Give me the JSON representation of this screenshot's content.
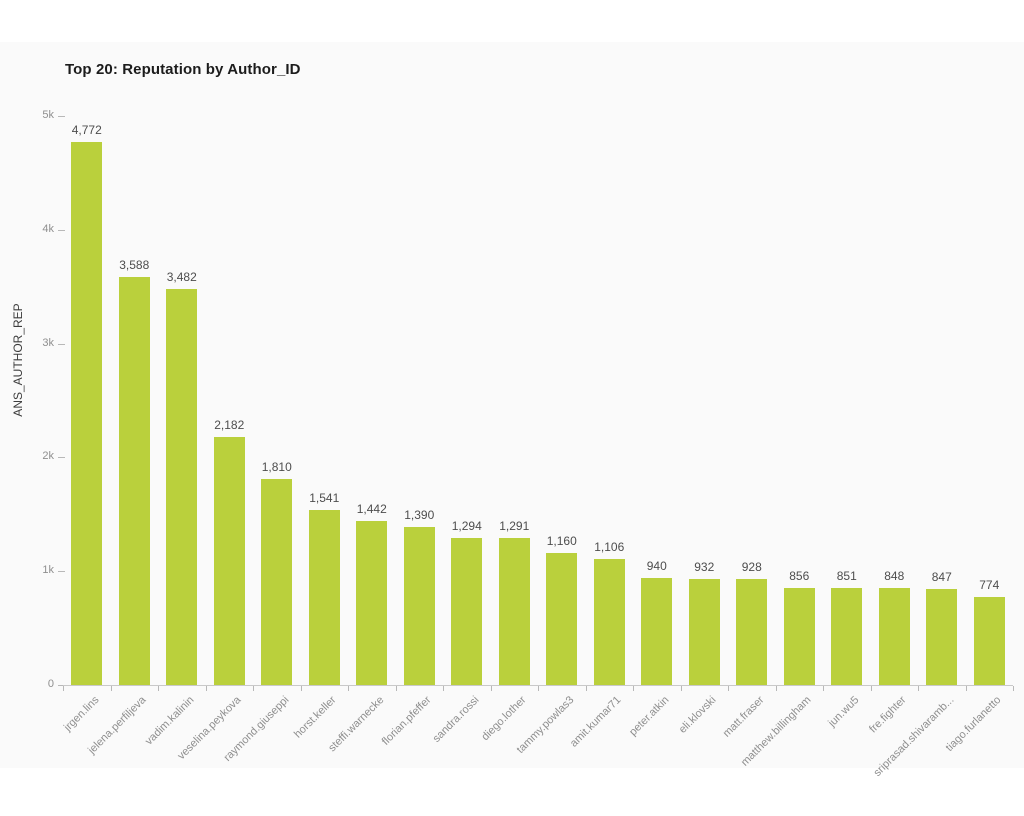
{
  "page": {
    "title": "Top 20: Reputation by Author_ID"
  },
  "chart_data": {
    "type": "bar",
    "title": "Top 20: Reputation by Author_ID",
    "xlabel": "",
    "ylabel": "ANS_AUTHOR_REP",
    "categories": [
      "jrgen.lins",
      "jelena.perfiljeva",
      "vadim.kalinin",
      "veselina.peykova",
      "raymond.giuseppi",
      "horst.keller",
      "steffi.warnecke",
      "florian.pfeffer",
      "sandra.rossi",
      "diego.lother",
      "tammy.powlas3",
      "amit.kumar71",
      "peter.atkin",
      "eli.klovski",
      "matt.fraser",
      "matthew.billingham",
      "jun.wu5",
      "fre.fighter",
      "sriprasad.shivaramb...",
      "tiago.furlanetto"
    ],
    "values": [
      4772,
      3588,
      3482,
      2182,
      1810,
      1541,
      1442,
      1390,
      1294,
      1291,
      1160,
      1106,
      940,
      932,
      928,
      856,
      851,
      848,
      847,
      774
    ],
    "value_labels": [
      "4,772",
      "3,588",
      "3,482",
      "2,182",
      "1,810",
      "1,541",
      "1,442",
      "1,390",
      "1,294",
      "1,291",
      "1,160",
      "1,106",
      "940",
      "932",
      "928",
      "856",
      "851",
      "848",
      "847",
      "774"
    ],
    "ylim": [
      0,
      5000
    ],
    "yticks": [
      {
        "value": 0,
        "label": "0"
      },
      {
        "value": 1000,
        "label": "1k"
      },
      {
        "value": 2000,
        "label": "2k"
      },
      {
        "value": 3000,
        "label": "3k"
      },
      {
        "value": 4000,
        "label": "4k"
      },
      {
        "value": 5000,
        "label": "5k"
      }
    ],
    "grid": false,
    "legend": false,
    "value_labels_visible": true,
    "colors": {
      "bar": "#bad03c",
      "value_label": "#4d4d4d",
      "axis_text": "#8f8f8f",
      "axis_line": "#c9c9c9",
      "title": "#1c1c1c",
      "panel_background": "#fafafa",
      "page_background": "#ffffff"
    }
  }
}
